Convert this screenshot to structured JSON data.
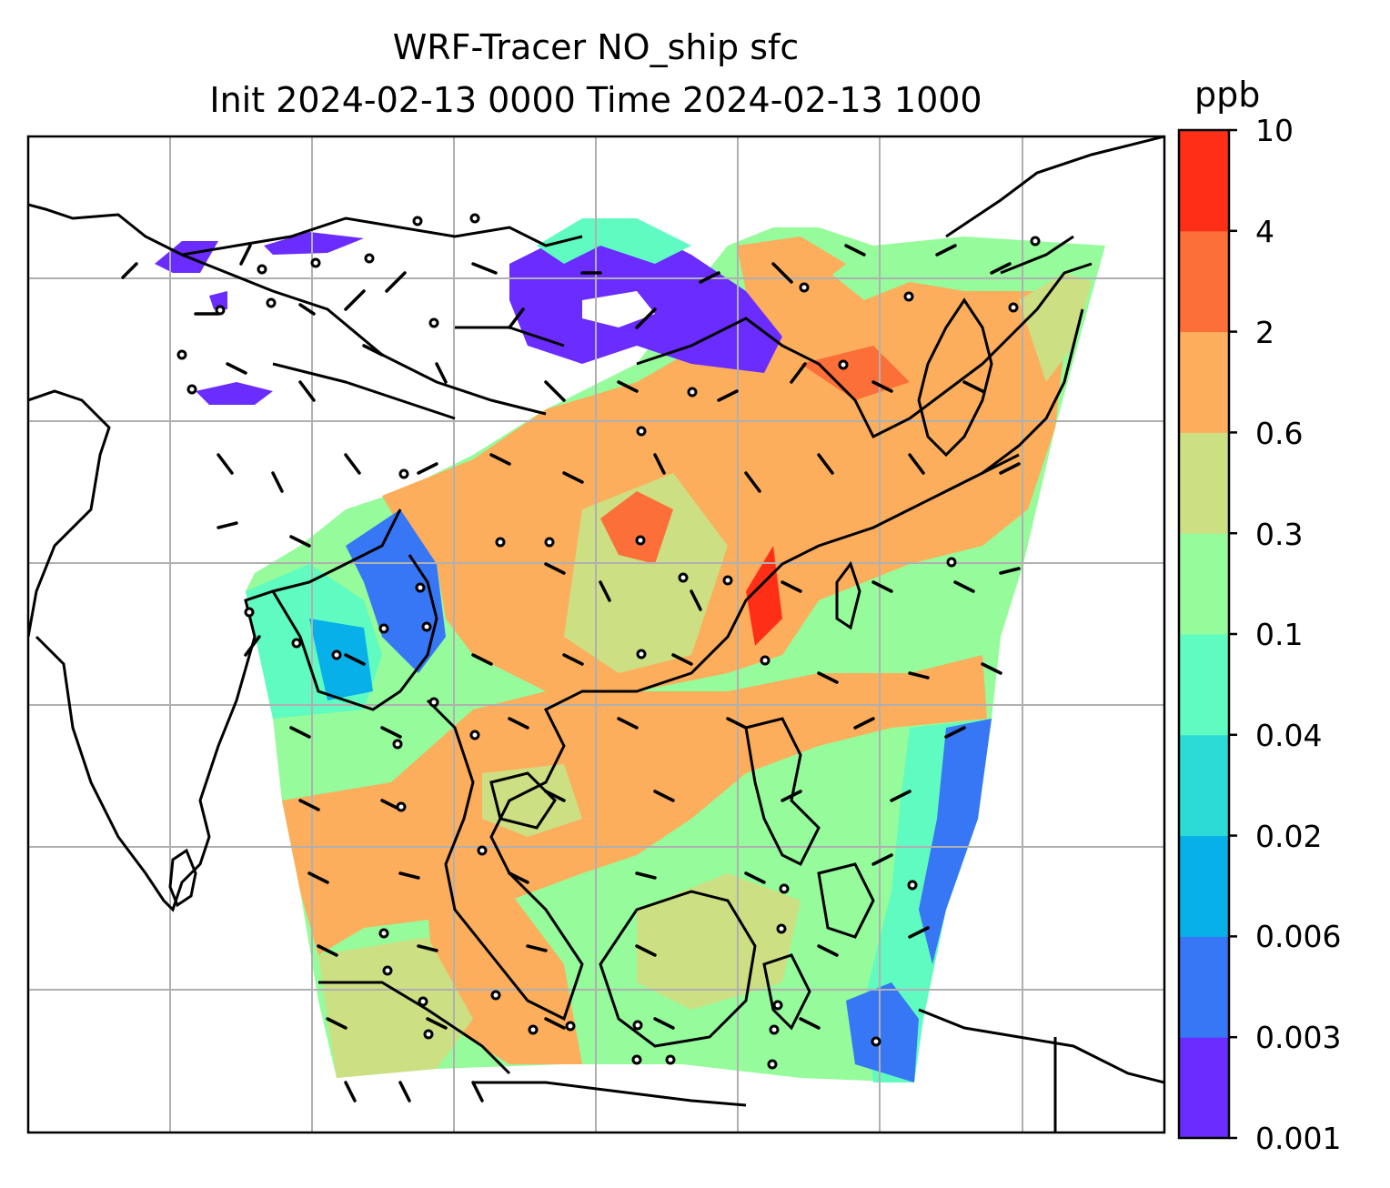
{
  "title": {
    "line1": "WRF-Tracer NO_ship sfc",
    "line2": "Init 2024-02-13 0000 Time 2024-02-13 1000"
  },
  "colorbar": {
    "units": "ppb",
    "tick_labels": [
      "0.001",
      "0.003",
      "0.006",
      "0.02",
      "0.04",
      "0.1",
      "0.3",
      "0.6",
      "2",
      "4",
      "10"
    ],
    "colors": [
      "#6a2cff",
      "#3776f5",
      "#07b0e8",
      "#2ddbd6",
      "#5ffbc0",
      "#95fb9b",
      "#cddf83",
      "#fcae5c",
      "#fc6f38",
      "#ff2e17"
    ]
  },
  "map": {
    "gridlines": true,
    "coastline_color": "#000000",
    "barb_color": "#000000"
  }
}
